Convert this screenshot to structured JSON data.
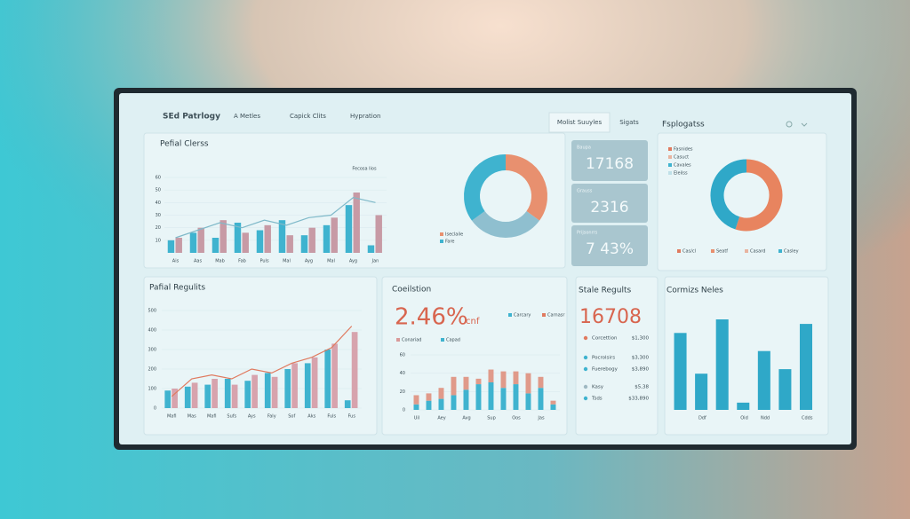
{
  "nav": {
    "brand": "SEd Patrlogy",
    "items": [
      "A Metles",
      "Capick Clits",
      "Hypration"
    ],
    "tabs": [
      "Molist Suuyles",
      "Sigats"
    ]
  },
  "overview": {
    "title": "Pefial Clerss",
    "annotation": "Fecosa lios",
    "chart": {
      "type": "bar",
      "categories": [
        "Ais",
        "Aas",
        "Mab",
        "Fab",
        "Puls",
        "Mal",
        "Ayg",
        "Mal",
        "Ayg",
        "Jan"
      ],
      "ylim": [
        0,
        60
      ],
      "yticks": [
        10,
        20,
        30,
        40,
        50,
        60
      ],
      "series": [
        {
          "color": "#3fb3cf",
          "values": [
            10,
            16,
            12,
            24,
            18,
            26,
            14,
            22,
            38,
            6
          ]
        },
        {
          "color": "#c79aa5",
          "values": [
            12,
            20,
            26,
            16,
            22,
            14,
            20,
            28,
            48,
            30
          ]
        }
      ],
      "line": {
        "color": "#7fb9c9",
        "values": [
          12,
          18,
          24,
          20,
          26,
          22,
          28,
          30,
          44,
          40
        ]
      }
    },
    "donut": {
      "type": "pie",
      "segments": [
        {
          "name": "Iseclaile",
          "value": 35,
          "color": "#e8906f"
        },
        {
          "value": 30,
          "color": "#8fbfcf"
        },
        {
          "name": "Fare",
          "value": 35,
          "color": "#3fb3cf"
        }
      ]
    }
  },
  "stats": [
    {
      "label": "Baupa",
      "value": "17168"
    },
    {
      "label": "Grauss",
      "value": "2316"
    },
    {
      "label": "Prijsonrrs",
      "value": "7   43%"
    }
  ],
  "segments": {
    "title": "Fsplogatss",
    "legend": [
      {
        "name": "Fasnides",
        "color": "#e07a5f"
      },
      {
        "name": "Casuct",
        "color": "#e8b4a0"
      },
      {
        "name": "Cavales",
        "color": "#3fb3cf"
      },
      {
        "name": "Eleilss",
        "color": "#bfe0e8"
      }
    ],
    "donut": {
      "type": "pie",
      "segments": [
        {
          "value": 55,
          "color": "#e8845f"
        },
        {
          "value": 45,
          "color": "#2fa8c8"
        }
      ]
    },
    "footer": [
      {
        "name": "Cas/cl",
        "color": "#e07a5f"
      },
      {
        "name": "Seatf",
        "color": "#e8906f"
      },
      {
        "name": "Casard",
        "color": "#e8b4a0"
      },
      {
        "name": "Casley",
        "color": "#3fb3cf"
      }
    ]
  },
  "trends": {
    "title": "Pafial Regulits",
    "chart": {
      "type": "bar",
      "categories": [
        "Mafi",
        "Mas",
        "Mafi",
        "Sufs",
        "Ays",
        "Faly",
        "Sof",
        "Aks",
        "Fuls",
        "Fus"
      ],
      "ylim": [
        0,
        500
      ],
      "yticks": [
        0,
        100,
        200,
        300,
        400,
        500
      ],
      "series": [
        {
          "color": "#3fb3cf",
          "values": [
            90,
            110,
            120,
            150,
            140,
            180,
            200,
            230,
            300,
            40
          ]
        },
        {
          "color": "#d7a3ad",
          "values": [
            100,
            130,
            150,
            120,
            170,
            160,
            230,
            260,
            330,
            390
          ]
        }
      ],
      "line": {
        "color": "#e07a5f",
        "values": [
          60,
          150,
          170,
          150,
          200,
          180,
          230,
          260,
          310,
          420
        ]
      }
    }
  },
  "conversion": {
    "title": "Coeilstion",
    "headline": "2.46%",
    "unit": "cnf",
    "legend": [
      {
        "name": "Carcary",
        "color": "#3fb3cf"
      },
      {
        "name": "Carnasr",
        "color": "#e07a5f"
      }
    ],
    "legend2": [
      {
        "name": "Conariad",
        "color": "#d99a9a"
      },
      {
        "name": "Capad",
        "color": "#3fb3cf"
      }
    ],
    "chart": {
      "type": "bar",
      "stacked": true,
      "categories": [
        "Uil",
        null,
        "Aey",
        null,
        "Avg",
        null,
        "Sup",
        null,
        "Oos",
        null,
        "Jas",
        null
      ],
      "ylim": [
        0,
        60
      ],
      "yticks": [
        0,
        20,
        40,
        60
      ],
      "series": [
        {
          "color": "#3fb3cf",
          "values": [
            6,
            10,
            12,
            16,
            22,
            28,
            30,
            24,
            28,
            18,
            24,
            6
          ]
        },
        {
          "color": "#e09a8a",
          "values": [
            10,
            8,
            12,
            20,
            14,
            6,
            14,
            18,
            14,
            22,
            12,
            4
          ]
        }
      ]
    }
  },
  "sales": {
    "title": "Stale Regults",
    "headline": "16708",
    "rows": [
      {
        "label": "Corcettion",
        "value": "$1,300",
        "color": "#e07a5f"
      },
      {
        "label": "Pocrolsirs",
        "value": "$3,300",
        "color": "#3fb3cf"
      },
      {
        "label": "Fuerebogy",
        "value": "$3,890",
        "color": "#3fb3cf"
      },
      {
        "label": "Kasy",
        "value": "$5,38",
        "color": "#9fb9c2"
      },
      {
        "label": "Tsds",
        "value": "$33,890",
        "color": "#3fb3cf"
      }
    ]
  },
  "comparison": {
    "title": "Cormizs Neles",
    "chart": {
      "type": "bar",
      "categories": [
        null,
        "Ddf",
        null,
        "Oid",
        "Ndd",
        null,
        "Cdds"
      ],
      "ylim": [
        0,
        100
      ],
      "series": [
        {
          "color": "#2fa8c8",
          "values": [
            85,
            40,
            100,
            8,
            65,
            45,
            95
          ]
        }
      ]
    }
  }
}
